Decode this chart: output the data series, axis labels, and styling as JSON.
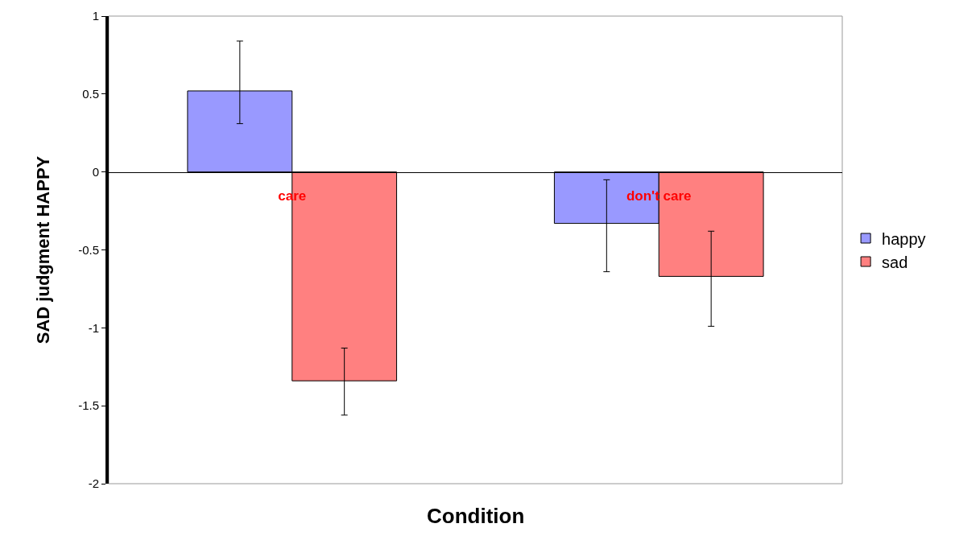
{
  "chart_data": {
    "type": "bar",
    "xlabel": "Condition",
    "ylabel": "SAD judgment HAPPY",
    "categories": [
      "care",
      "don't care"
    ],
    "series": [
      {
        "name": "happy",
        "color": "#9999ff",
        "values": [
          0.52,
          -0.33
        ],
        "errors": [
          [
            0.31,
            0.84
          ],
          [
            -0.64,
            -0.05
          ]
        ]
      },
      {
        "name": "sad",
        "color": "#ff8080",
        "values": [
          -1.34,
          -0.67
        ],
        "errors": [
          [
            -1.56,
            -1.13
          ],
          [
            -0.99,
            -0.38
          ]
        ]
      }
    ],
    "ylim": [
      -2,
      1
    ],
    "yticks": [
      -2,
      -1.5,
      -1,
      -0.5,
      0,
      0.5,
      1
    ],
    "grid": false,
    "legend": "right"
  }
}
